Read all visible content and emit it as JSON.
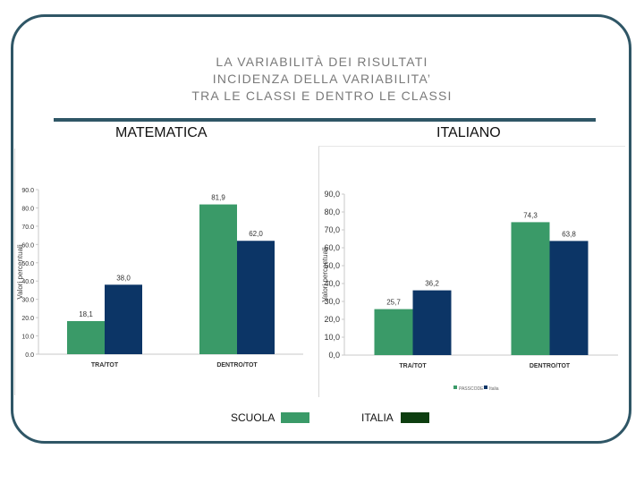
{
  "title_lines": [
    "LA VARIABILITÀ DEI RISULTATI",
    "INCIDENZA DELLA VARIABILITA’",
    "TRA LE CLASSI E DENTRO LE CLASSI"
  ],
  "subtitle_left": "MATEMATICA",
  "subtitle_right": "ITALIANO",
  "legend": {
    "scuola_label": "SCUOLA",
    "italia_label": "ITALIA",
    "scuola_color": "#3a9a68",
    "italia_color": "#0d3e10"
  },
  "chart_data": [
    {
      "type": "bar",
      "subject": "MATEMATICA",
      "categories": [
        "TRA/TOT",
        "DENTRO/TOT"
      ],
      "ylabel": "Valori percentuali",
      "ylim": [
        0,
        90
      ],
      "yticks": [
        "0.0",
        "10.0",
        "20.0",
        "30.0",
        "40.0",
        "50.0",
        "60.0",
        "70.0",
        "80.0",
        "90.0"
      ],
      "series": [
        {
          "values": [
            18.1,
            81.9
          ],
          "value_labels": [
            "18,1",
            "81,9"
          ],
          "color": "#3a9a68"
        },
        {
          "values": [
            38.0,
            62.0
          ],
          "value_labels": [
            "38,0",
            "62,0"
          ],
          "color": "#0c3566"
        }
      ]
    },
    {
      "type": "bar",
      "subject": "ITALIANO",
      "categories": [
        "TRA/TOT",
        "DENTRO/TOT"
      ],
      "ylabel": "Valori percentuali",
      "ylim": [
        0,
        90
      ],
      "yticks": [
        "0,0",
        "10,0",
        "20,0",
        "30,0",
        "40,0",
        "50,0",
        "60,0",
        "70,0",
        "80,0",
        "90,0"
      ],
      "legend_entries": [
        "PASSCODE",
        "Italia"
      ],
      "series": [
        {
          "values": [
            25.7,
            74.3
          ],
          "value_labels": [
            "25,7",
            "74,3"
          ],
          "color": "#3a9a68"
        },
        {
          "values": [
            36.2,
            63.8
          ],
          "value_labels": [
            "36,2",
            "63,8"
          ],
          "color": "#0c3566"
        }
      ]
    }
  ]
}
